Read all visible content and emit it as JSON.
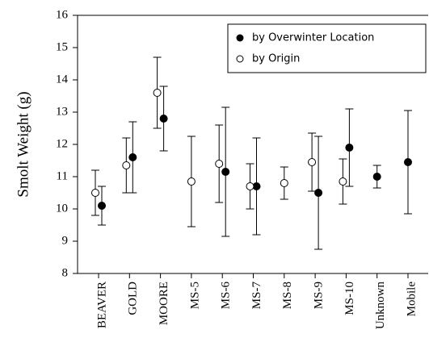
{
  "chart_data": {
    "type": "errorbar-dot",
    "ylabel": "Smolt Weight (g)",
    "categories": [
      "BEAVER",
      "GOLD",
      "MOORE",
      "MS-5",
      "MS-6",
      "MS-7",
      "MS-8",
      "MS-9",
      "MS-10",
      "Unknown",
      "Mobile"
    ],
    "series": [
      {
        "name": "by Overwinter Location",
        "color": "#000000",
        "marker": "filled",
        "values": [
          10.1,
          11.6,
          12.8,
          null,
          11.15,
          10.7,
          null,
          10.5,
          11.9,
          11.0,
          11.45
        ],
        "errors": [
          0.6,
          1.1,
          1.0,
          null,
          2.0,
          1.5,
          null,
          1.75,
          1.2,
          0.35,
          1.6
        ]
      },
      {
        "name": "by Origin",
        "color": "#000000",
        "marker": "open",
        "values": [
          10.5,
          11.35,
          13.6,
          10.85,
          11.4,
          10.7,
          10.8,
          11.45,
          10.85,
          null,
          null
        ],
        "errors": [
          0.7,
          0.85,
          1.1,
          1.4,
          1.2,
          0.7,
          0.5,
          0.9,
          0.7,
          null,
          null
        ]
      }
    ],
    "ylim": [
      8,
      16
    ],
    "yticks": [
      8,
      9,
      10,
      11,
      12,
      13,
      14,
      15,
      16
    ],
    "legend": "upper right"
  }
}
